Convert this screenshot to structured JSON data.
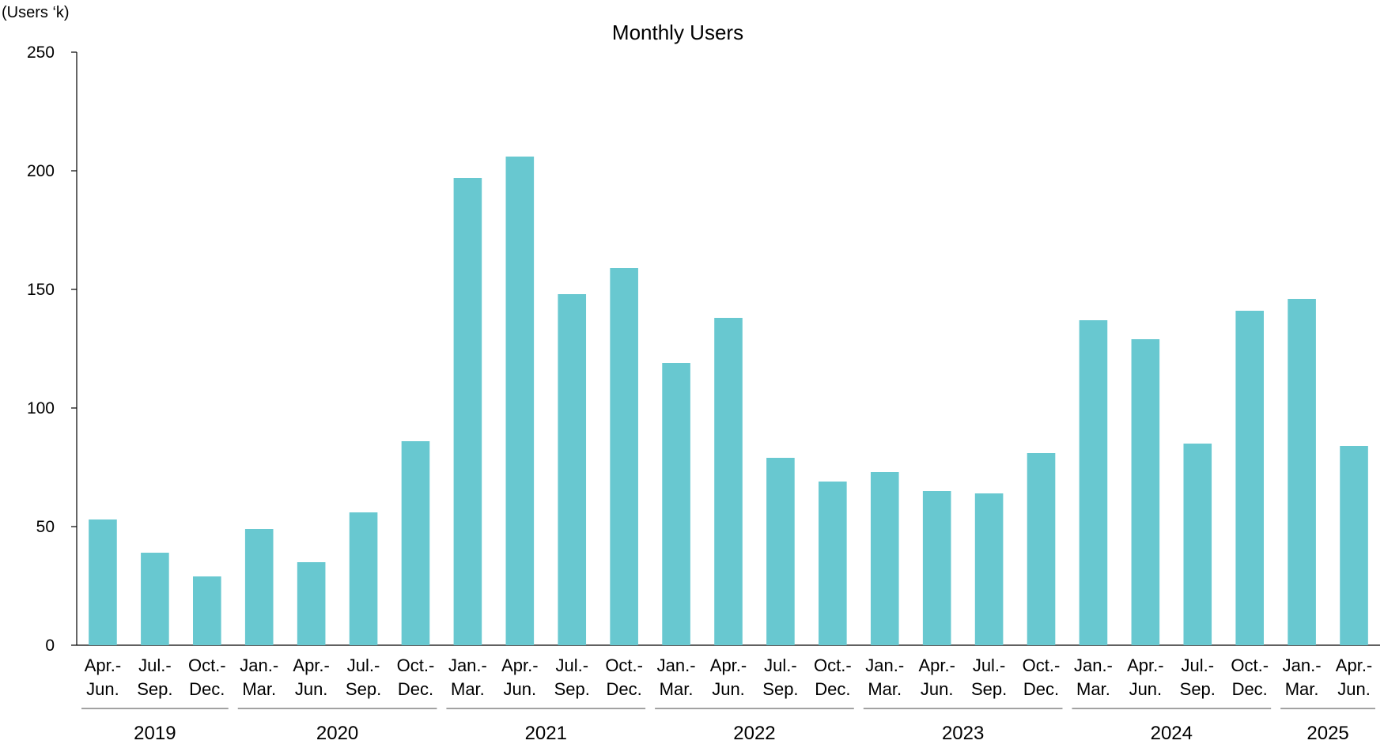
{
  "chart_data": {
    "type": "bar",
    "title": "Monthly Users",
    "ylabel": "(Users ‘k)",
    "xlabel": "",
    "ylim": [
      0,
      250
    ],
    "yticks": [
      0,
      50,
      100,
      150,
      200,
      250
    ],
    "grid": false,
    "legend": "none",
    "bar_color": "#68C8D0",
    "categories": [
      [
        "Apr.-",
        "Jun."
      ],
      [
        "Jul.-",
        "Sep."
      ],
      [
        "Oct.-",
        "Dec."
      ],
      [
        "Jan.-",
        "Mar."
      ],
      [
        "Apr.-",
        "Jun."
      ],
      [
        "Jul.-",
        "Sep."
      ],
      [
        "Oct.-",
        "Dec."
      ],
      [
        "Jan.-",
        "Mar."
      ],
      [
        "Apr.-",
        "Jun."
      ],
      [
        "Jul.-",
        "Sep."
      ],
      [
        "Oct.-",
        "Dec."
      ],
      [
        "Jan.-",
        "Mar."
      ],
      [
        "Apr.-",
        "Jun."
      ],
      [
        "Jul.-",
        "Sep."
      ],
      [
        "Oct.-",
        "Dec."
      ],
      [
        "Jan.-",
        "Mar."
      ],
      [
        "Apr.-",
        "Jun."
      ],
      [
        "Jul.-",
        "Sep."
      ],
      [
        "Oct.-",
        "Dec."
      ],
      [
        "Jan.-",
        "Mar."
      ],
      [
        "Apr.-",
        "Jun."
      ],
      [
        "Jul.-",
        "Sep."
      ],
      [
        "Oct.-",
        "Dec."
      ],
      [
        "Jan.-",
        "Mar."
      ],
      [
        "Apr.-",
        "Jun."
      ]
    ],
    "values": [
      53,
      39,
      29,
      49,
      35,
      56,
      86,
      197,
      206,
      148,
      159,
      119,
      138,
      79,
      69,
      73,
      65,
      64,
      81,
      137,
      129,
      85,
      141,
      146,
      84
    ],
    "year_groups": [
      {
        "label": "2019",
        "start": 0,
        "count": 3
      },
      {
        "label": "2020",
        "start": 3,
        "count": 4
      },
      {
        "label": "2021",
        "start": 7,
        "count": 4
      },
      {
        "label": "2022",
        "start": 11,
        "count": 4
      },
      {
        "label": "2023",
        "start": 15,
        "count": 4
      },
      {
        "label": "2024",
        "start": 19,
        "count": 4
      },
      {
        "label": "2025",
        "start": 23,
        "count": 2
      }
    ]
  }
}
